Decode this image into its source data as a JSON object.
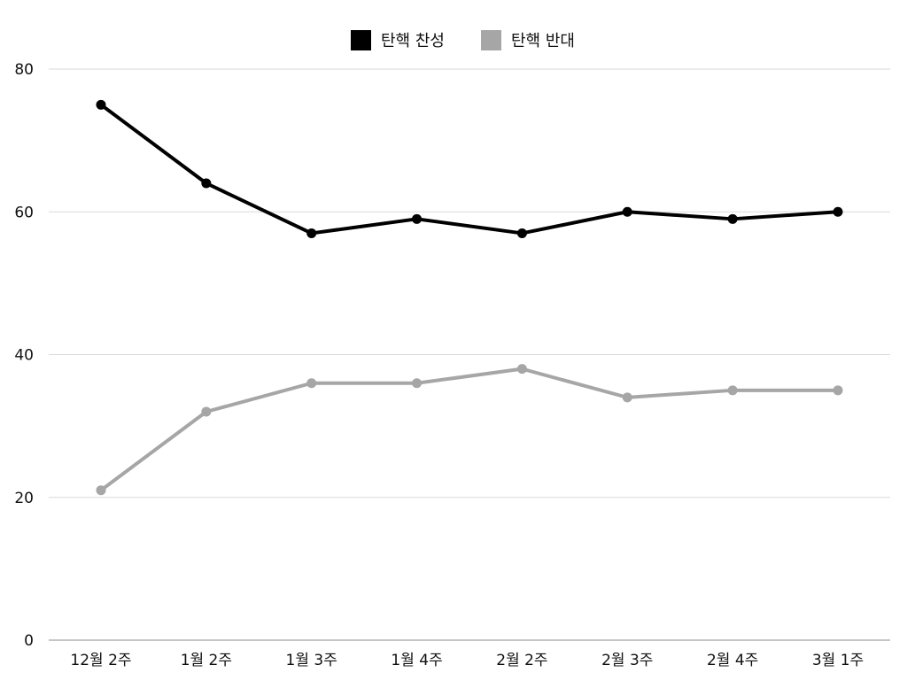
{
  "chart_data": {
    "type": "line",
    "title": "",
    "xlabel": "",
    "ylabel": "",
    "categories": [
      "12월 2주",
      "1월 2주",
      "1월 3주",
      "1월 4주",
      "2월 2주",
      "2월 3주",
      "2월 4주",
      "3월 1주"
    ],
    "ylim": [
      0,
      80
    ],
    "yticks": [
      "0",
      "20",
      "40",
      "60",
      "80"
    ],
    "grid": true,
    "legend_position": "top-center",
    "series": [
      {
        "name": "탄핵 찬성",
        "color": "#000000",
        "values": [
          75,
          64,
          57,
          59,
          57,
          60,
          59,
          60
        ]
      },
      {
        "name": "탄핵 반대",
        "color": "#a6a6a6",
        "values": [
          21,
          32,
          36,
          36,
          38,
          34,
          35,
          35
        ]
      }
    ]
  }
}
